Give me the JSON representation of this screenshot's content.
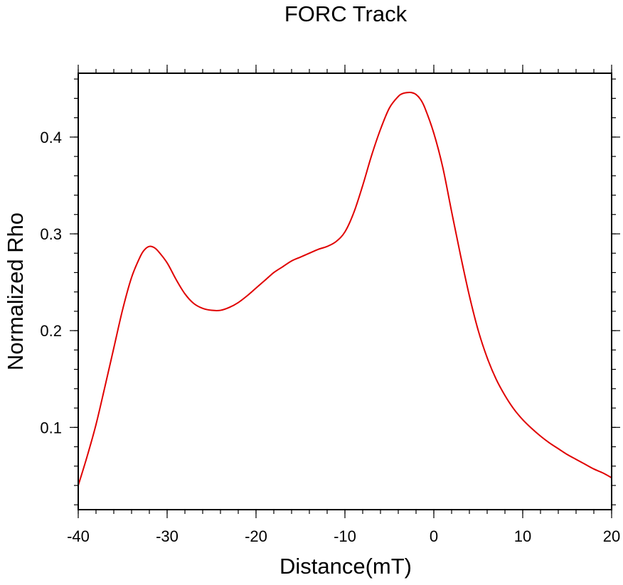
{
  "chart_data": {
    "type": "line",
    "title": "FORC Track",
    "xlabel": "Distance(mT)",
    "ylabel": "Normalized Rho",
    "xlim": [
      -40,
      20
    ],
    "ylim": [
      0.015,
      0.466
    ],
    "xticks": [
      -40,
      -30,
      -20,
      -10,
      0,
      10,
      20
    ],
    "xtick_labels": [
      "-40",
      "-30",
      "-20",
      "-10",
      "0",
      "10",
      "20"
    ],
    "yticks": [
      0.1,
      0.2,
      0.3,
      0.4
    ],
    "ytick_labels": [
      "0.1",
      "0.2",
      "0.3",
      "0.4"
    ],
    "grid": false,
    "line_color": "#e00000",
    "series": [
      {
        "name": "FORC Track",
        "x": [
          -40,
          -39,
          -38,
          -37,
          -36,
          -35,
          -34,
          -33,
          -32.5,
          -32,
          -31.5,
          -31,
          -30,
          -29,
          -28,
          -27,
          -26,
          -25,
          -24,
          -23,
          -22,
          -21,
          -20,
          -19,
          -18,
          -17,
          -16,
          -15,
          -14,
          -13,
          -12,
          -11,
          -10,
          -9,
          -8,
          -7,
          -6,
          -5,
          -4,
          -3.5,
          -3,
          -2.5,
          -2,
          -1.5,
          -1,
          0,
          1,
          2,
          3,
          4,
          5,
          6,
          7,
          8,
          9,
          10,
          11,
          12,
          13,
          14,
          15,
          16,
          17,
          18,
          19,
          20
        ],
        "y": [
          0.04,
          0.07,
          0.103,
          0.142,
          0.182,
          0.222,
          0.255,
          0.277,
          0.284,
          0.287,
          0.286,
          0.282,
          0.27,
          0.253,
          0.238,
          0.228,
          0.223,
          0.221,
          0.221,
          0.224,
          0.229,
          0.236,
          0.244,
          0.252,
          0.26,
          0.266,
          0.272,
          0.276,
          0.28,
          0.284,
          0.287,
          0.292,
          0.302,
          0.322,
          0.35,
          0.381,
          0.408,
          0.43,
          0.442,
          0.445,
          0.446,
          0.446,
          0.444,
          0.439,
          0.43,
          0.404,
          0.369,
          0.323,
          0.278,
          0.236,
          0.2,
          0.172,
          0.15,
          0.133,
          0.119,
          0.108,
          0.099,
          0.091,
          0.084,
          0.078,
          0.072,
          0.067,
          0.062,
          0.057,
          0.053,
          0.048
        ]
      }
    ]
  }
}
